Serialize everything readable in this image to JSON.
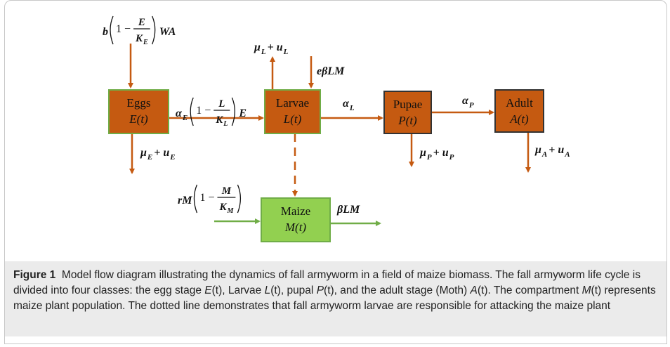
{
  "nodes": [
    {
      "label": "Eggs",
      "variable": "E(t)"
    },
    {
      "label": "Larvae",
      "variable": "L(t)"
    },
    {
      "label": "Pupae",
      "variable": "P(t)"
    },
    {
      "label": "Adult",
      "variable": "A(t)"
    },
    {
      "label": "Maize",
      "variable": "M(t)"
    }
  ],
  "flows": [
    [
      {
        "text": "b"
      },
      {
        "paren": {
          "lead": "1 −",
          "num": "E",
          "den": "K",
          "den_sub": "E"
        }
      },
      {
        "text": "WA"
      }
    ],
    [
      {
        "text": "α",
        "sub": "E"
      },
      {
        "paren": {
          "lead": "1 −",
          "num": "L",
          "den": "K",
          "den_sub": "L"
        }
      },
      {
        "text": "E"
      }
    ],
    [
      {
        "text": "μ",
        "sub": "L"
      },
      {
        "text": " + u",
        "sub": "L"
      }
    ],
    [
      {
        "text": "eβLM"
      }
    ],
    [
      {
        "text": "α",
        "sub": "L"
      }
    ],
    [
      {
        "text": "α",
        "sub": "P"
      }
    ],
    [
      {
        "text": "μ",
        "sub": "E"
      },
      {
        "text": " + u",
        "sub": "E"
      }
    ],
    [
      {
        "text": "μ",
        "sub": "P"
      },
      {
        "text": " + u",
        "sub": "P"
      }
    ],
    [
      {
        "text": "μ",
        "sub": "A"
      },
      {
        "text": " + u",
        "sub": "A"
      }
    ],
    [
      {
        "text": "rM"
      },
      {
        "paren": {
          "lead": "1 −",
          "num": "M",
          "den": "K",
          "den_sub": "M"
        }
      }
    ],
    [
      {
        "text": "βLM"
      }
    ]
  ],
  "caption": {
    "label": "Figure 1",
    "body": [
      {
        "text": "  Model flow diagram illustrating the dynamics of fall armyworm in a field of maize biomass. The fall armyworm life cycle is divided into four classes: the egg stage "
      },
      {
        "text": "E",
        "italic": true
      },
      {
        "text": "(t), Larvae "
      },
      {
        "text": "L",
        "italic": true
      },
      {
        "text": "(t), pupal "
      },
      {
        "text": "P",
        "italic": true
      },
      {
        "text": "(t), and the adult stage (Moth) "
      },
      {
        "text": "A",
        "italic": true
      },
      {
        "text": "(t). The compartment "
      },
      {
        "text": "M",
        "italic": true
      },
      {
        "text": "(t) represents maize plant population. The dotted line demonstrates that fall armyworm larvae are responsible for attacking the maize plant"
      }
    ]
  }
}
